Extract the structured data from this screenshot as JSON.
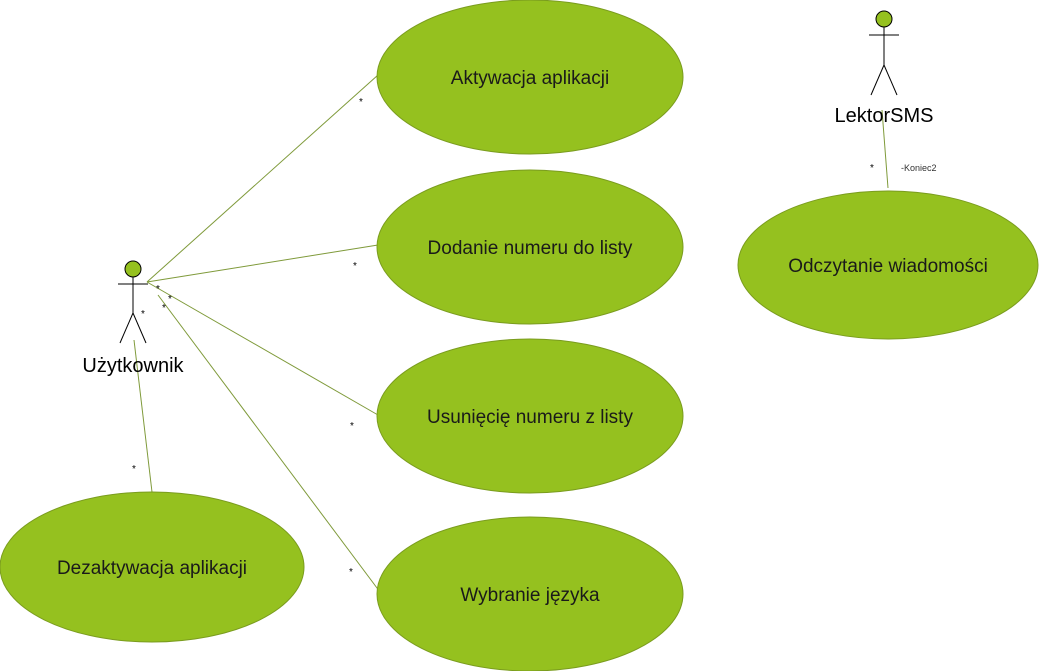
{
  "actors": {
    "user": {
      "name": "Użytkownik"
    },
    "reader": {
      "name": "LektorSMS"
    }
  },
  "use_cases": {
    "activate": "Aktywacja aplikacji",
    "add_number": "Dodanie numeru do listy",
    "remove_number": "Usunięcię numeru z listy",
    "select_language": "Wybranie języka",
    "deactivate": "Dezaktywacja aplikacji",
    "read_message": "Odczytanie wiadomości"
  },
  "multiplicities": {
    "many": "*"
  },
  "roles": {
    "end2": "-Koniec2"
  },
  "colors": {
    "use_case_fill": "#95c11f",
    "association": "#7f9a3a"
  }
}
